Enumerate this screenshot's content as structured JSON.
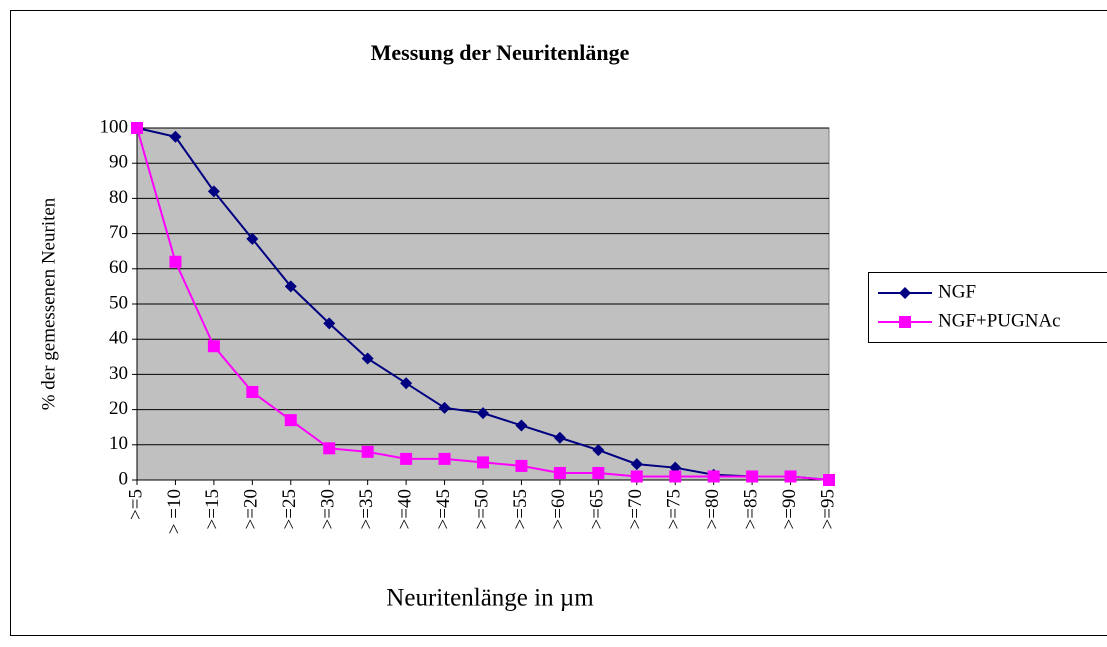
{
  "chart_data": {
    "type": "line",
    "title": "Messung der Neuritenlänge",
    "x_label": "Neuritenlänge in µm",
    "y_label": "% der gemessenen Neuriten",
    "categories": [
      ">=5",
      "> =10",
      ">=15",
      ">=20",
      ">=25",
      ">=30",
      ">=35",
      ">=40",
      ">=45",
      ">=50",
      ">=55",
      ">=60",
      ">=65",
      ">=70",
      ">=75",
      ">=80",
      ">=85",
      ">=90",
      ">=95"
    ],
    "series": [
      {
        "name": "NGF",
        "color": "#000080",
        "marker": "diamond",
        "values": [
          100,
          97.5,
          82,
          68.5,
          55,
          44.5,
          34.5,
          27.5,
          20.5,
          19,
          15.5,
          12,
          8.5,
          4.5,
          3.5,
          1.5,
          1,
          1,
          0
        ]
      },
      {
        "name": "NGF+PUGNAc",
        "color": "#ff00ff",
        "marker": "square",
        "values": [
          100,
          62,
          38,
          25,
          17,
          9,
          8,
          6,
          6,
          5,
          4,
          2,
          2,
          1,
          1,
          1,
          1,
          1,
          0
        ]
      }
    ],
    "ylim": [
      0,
      100
    ],
    "yticks": [
      0,
      10,
      20,
      30,
      40,
      50,
      60,
      70,
      80,
      90,
      100
    ],
    "grid": true,
    "legend": "right"
  }
}
